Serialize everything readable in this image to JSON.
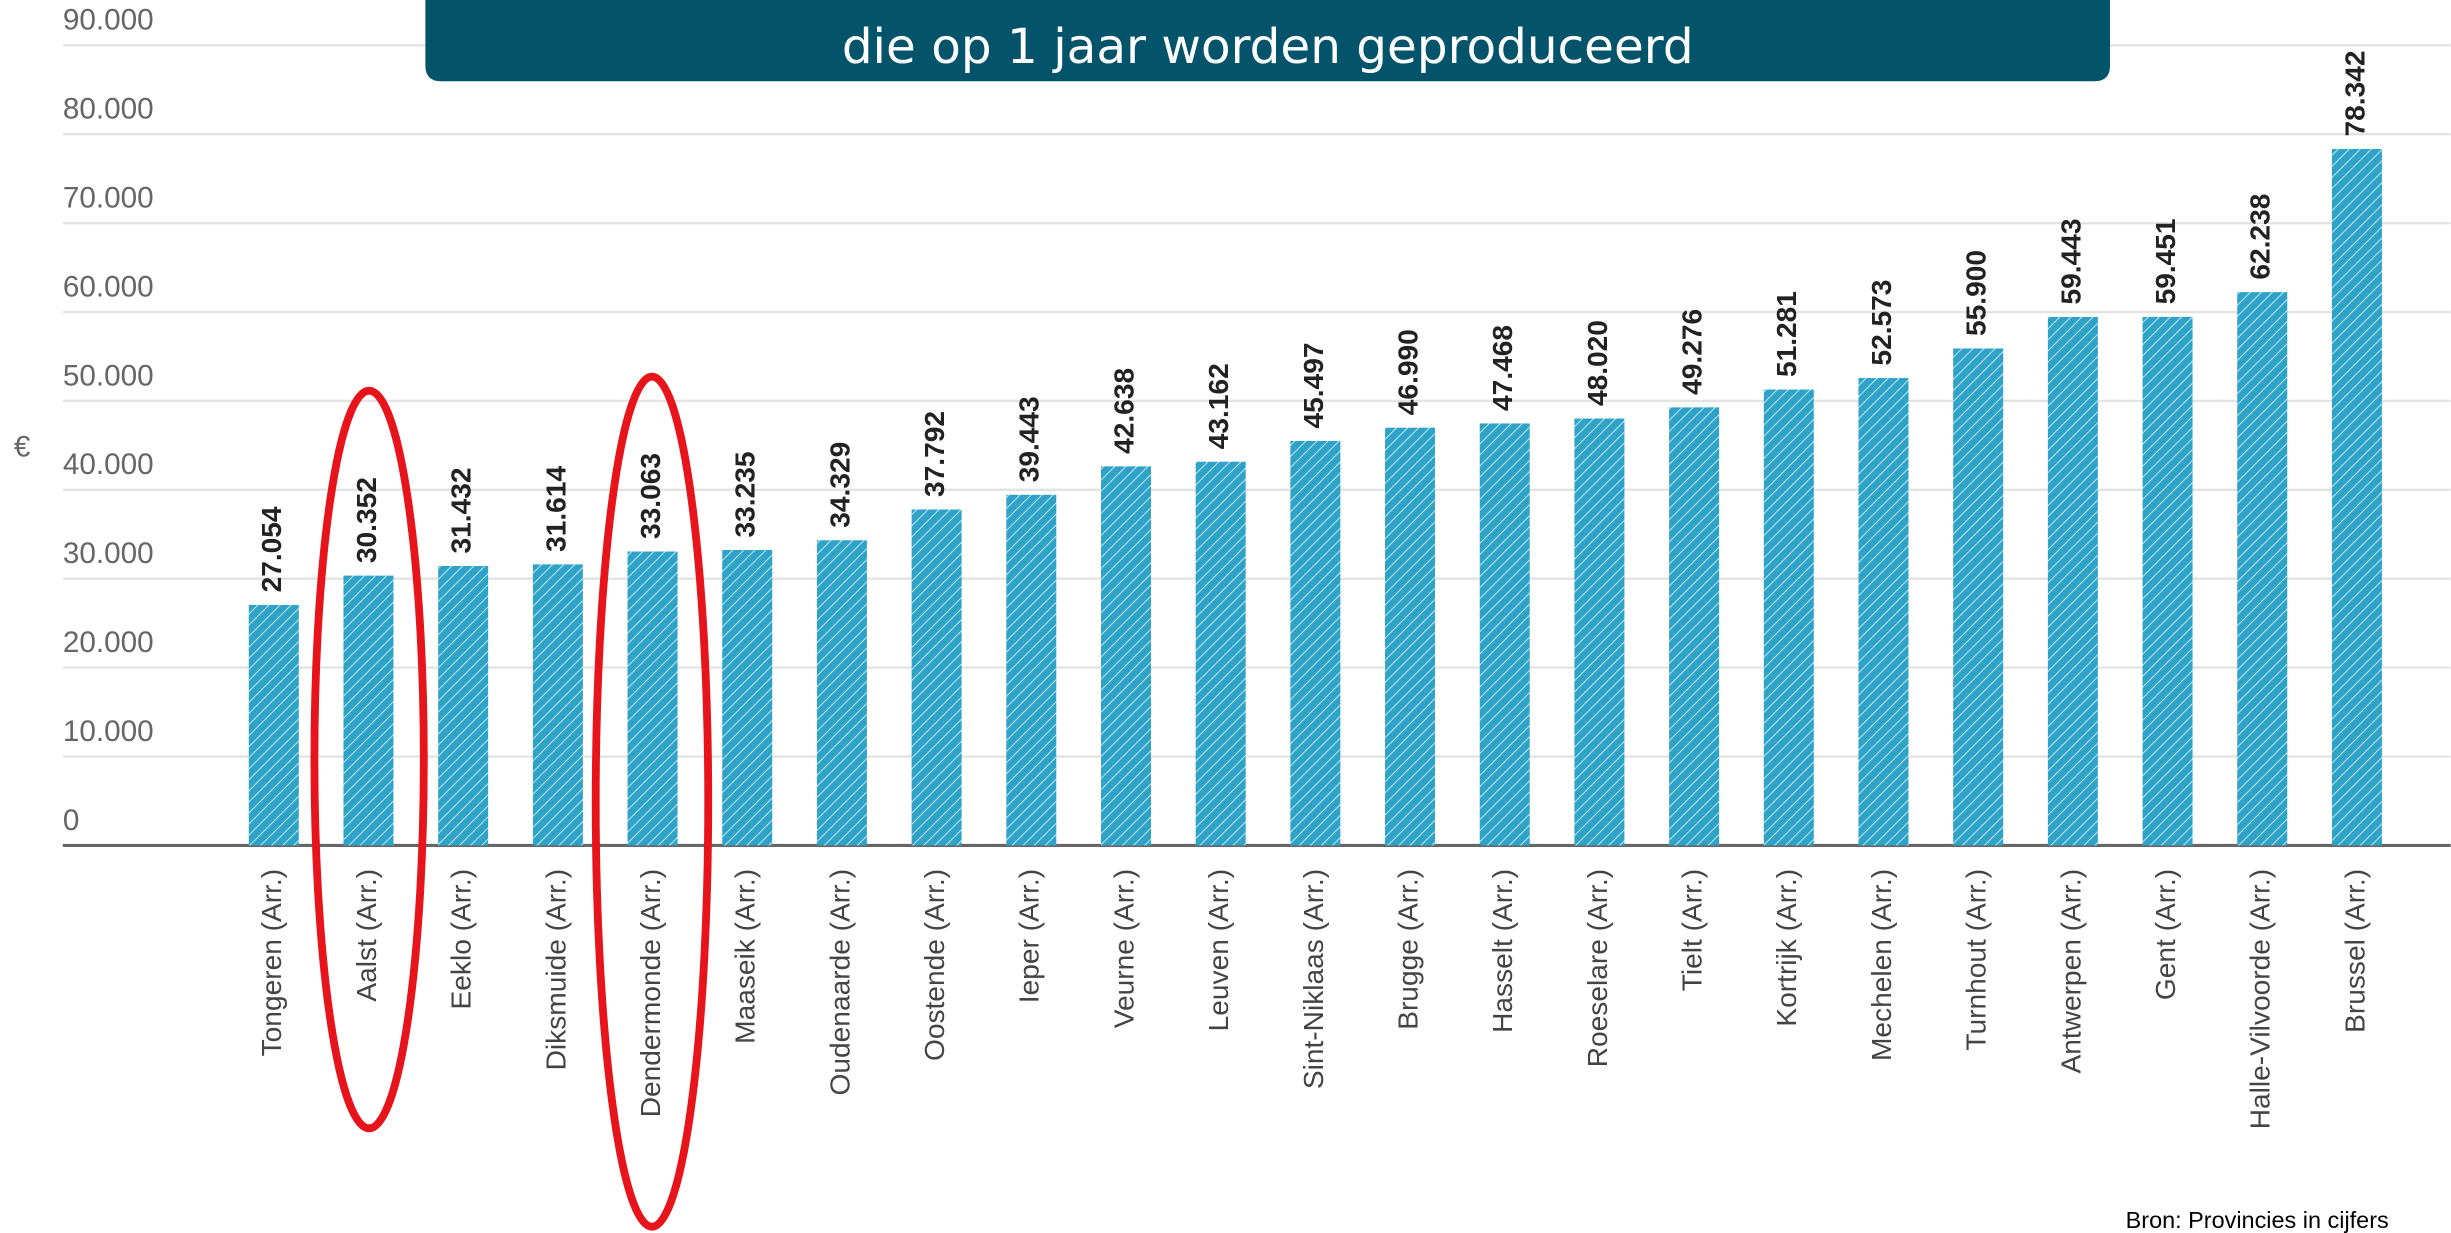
{
  "chart_data": {
    "type": "bar",
    "title": "die op 1 jaar worden geproduceerd",
    "y_label": "€",
    "source": "Bron: Provincies in cijfers",
    "categories": [
      "Tongeren (Arr.)",
      "Aalst (Arr.)",
      "Eeklo (Arr.)",
      "Diksmuide (Arr.)",
      "Dendermonde (Arr.)",
      "Maaseik (Arr.)",
      "Oudenaarde (Arr.)",
      "Oostende (Arr.)",
      "Ieper (Arr.)",
      "Veurne (Arr.)",
      "Leuven (Arr.)",
      "Sint-Niklaas (Arr.)",
      "Brugge (Arr.)",
      "Hasselt (Arr.)",
      "Roeselare (Arr.)",
      "Tielt (Arr.)",
      "Kortrijk (Arr.)",
      "Mechelen (Arr.)",
      "Turnhout (Arr.)",
      "Antwerpen (Arr.)",
      "Gent (Arr.)",
      "Halle-Vilvoorde (Arr.)",
      "Brussel (Arr.)"
    ],
    "values": [
      27054,
      30352,
      31432,
      31614,
      33063,
      33235,
      34329,
      37792,
      39443,
      42638,
      43162,
      45497,
      46990,
      47468,
      48020,
      49276,
      51281,
      52573,
      55900,
      59443,
      59451,
      62238,
      78342
    ],
    "value_labels": [
      "27.054",
      "30.352",
      "31.432",
      "31.614",
      "33.063",
      "33.235",
      "34.329",
      "37.792",
      "39.443",
      "42.638",
      "43.162",
      "45.497",
      "46.990",
      "47.468",
      "48.020",
      "49.276",
      "51.281",
      "52.573",
      "55.900",
      "59.443",
      "59.451",
      "62.238",
      "78.342"
    ],
    "color": "#2ea3c7",
    "ylim": [
      0,
      90000
    ],
    "yticks": [
      0,
      {
        "value": 10000,
        "label": "10.000"
      },
      {
        "value": 20000,
        "label": "20.000"
      },
      {
        "value": 30000,
        "label": "30.000"
      },
      {
        "value": 40000,
        "label": "40.000"
      },
      {
        "value": 50000,
        "label": "50.000"
      },
      {
        "value": 60000,
        "label": "60.000"
      },
      {
        "value": 70000,
        "label": "70.000"
      },
      {
        "value": 80000,
        "label": "80.000"
      },
      {
        "value": 90000,
        "label": "90.000"
      }
    ],
    "grid": true
  }
}
